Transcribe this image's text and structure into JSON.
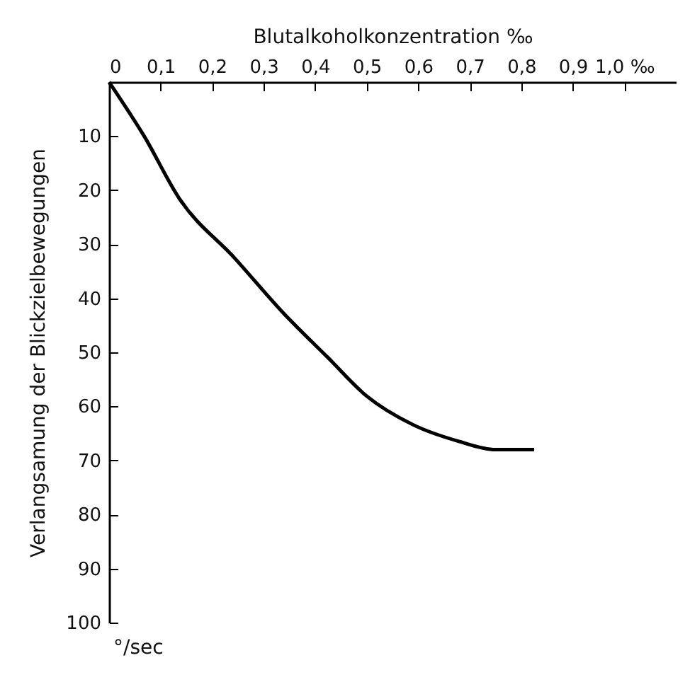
{
  "chart_data": {
    "type": "line",
    "xlabel": "Blutalkoholkonzentration ‰",
    "ylabel": "Verlangsamung der Blickzielbewegungen",
    "annotations": [
      "°/sec"
    ],
    "x": [
      0,
      0.068,
      0.136,
      0.245,
      0.335,
      0.425,
      0.5,
      0.59,
      0.68,
      0.75,
      0.825
    ],
    "series": [
      {
        "color": "#000000",
        "values": [
          0,
          10,
          21.5,
          32.7,
          42.4,
          51,
          58.1,
          63.4,
          66.5,
          68,
          68
        ]
      }
    ],
    "xlim": [
      0,
      1.1
    ],
    "ylim": [
      100,
      0
    ],
    "xticks": [
      0,
      {
        "value": 0.1,
        "label": "0,1"
      },
      {
        "value": 0.2,
        "label": "0,2"
      },
      {
        "value": 0.3,
        "label": "0,3"
      },
      {
        "value": 0.4,
        "label": "0,4"
      },
      {
        "value": 0.5,
        "label": "0,5"
      },
      {
        "value": 0.6,
        "label": "0,6"
      },
      {
        "value": 0.7,
        "label": "0,7"
      },
      {
        "value": 0.8,
        "label": "0,8"
      },
      {
        "value": 0.9,
        "label": "0,9"
      },
      {
        "value": 1.0,
        "label": "1,0 ‰"
      }
    ],
    "yticks": [
      10,
      20,
      30,
      40,
      50,
      60,
      70,
      80,
      90,
      100
    ],
    "grid": false,
    "line_style": "solid"
  }
}
